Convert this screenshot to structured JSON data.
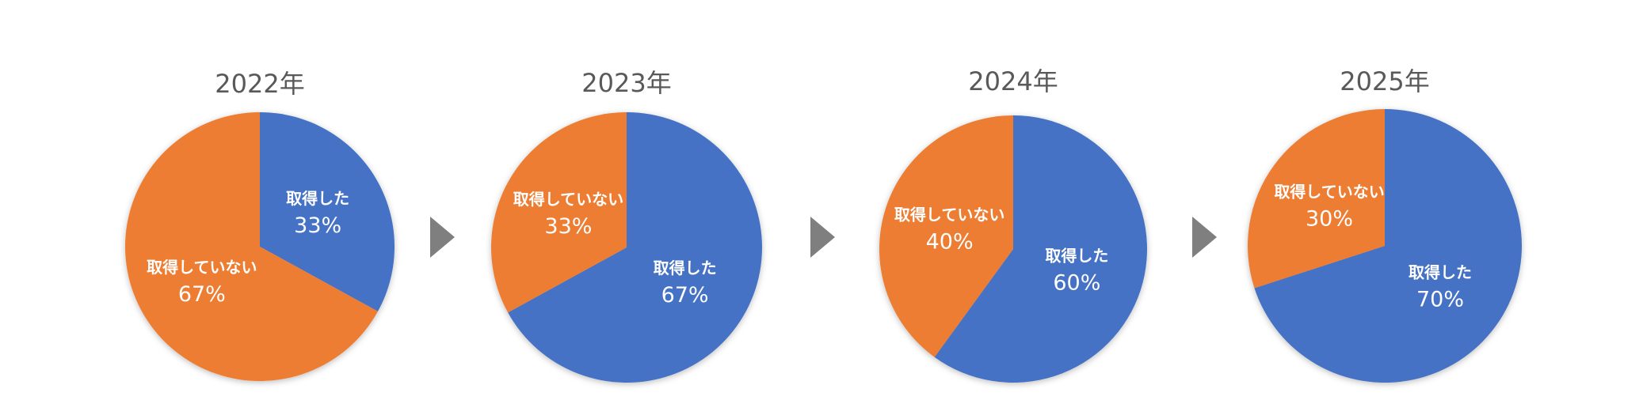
{
  "chart_data": [
    {
      "type": "pie",
      "title": "2022年",
      "categories": [
        "取得した",
        "取得していない"
      ],
      "values": [
        33,
        67
      ],
      "value_labels": [
        "33%",
        "67%"
      ],
      "colors": [
        "#4472c4",
        "#ed7d31"
      ]
    },
    {
      "type": "pie",
      "title": "2023年",
      "categories": [
        "取得した",
        "取得していない"
      ],
      "values": [
        67,
        33
      ],
      "value_labels": [
        "67%",
        "33%"
      ],
      "colors": [
        "#4472c4",
        "#ed7d31"
      ]
    },
    {
      "type": "pie",
      "title": "2024年",
      "categories": [
        "取得した",
        "取得していない"
      ],
      "values": [
        60,
        40
      ],
      "value_labels": [
        "60%",
        "40%"
      ],
      "colors": [
        "#4472c4",
        "#ed7d31"
      ]
    },
    {
      "type": "pie",
      "title": "2025年",
      "categories": [
        "取得した",
        "取得していない"
      ],
      "values": [
        70,
        30
      ],
      "value_labels": [
        "70%",
        "30%"
      ],
      "colors": [
        "#4472c4",
        "#ed7d31"
      ]
    }
  ]
}
